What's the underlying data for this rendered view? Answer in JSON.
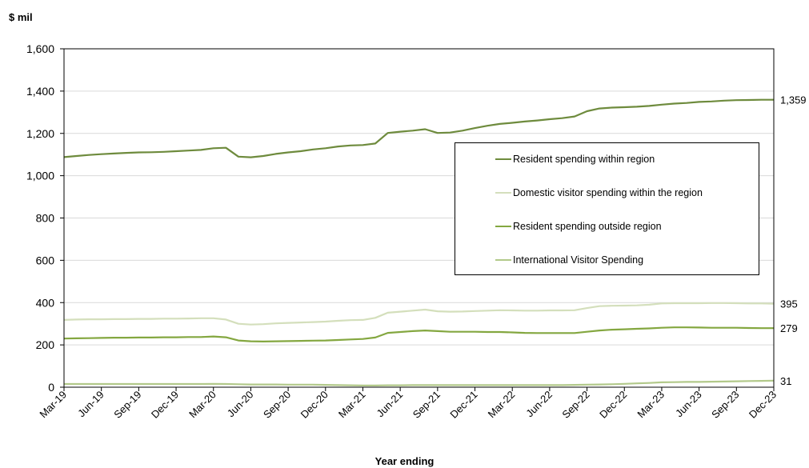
{
  "chart_data": {
    "type": "line",
    "unit_label": "$ mil",
    "xlabel": "Year ending",
    "ylim": [
      0,
      1600
    ],
    "yticks": [
      0,
      200,
      400,
      600,
      800,
      1000,
      1200,
      1400,
      1600
    ],
    "ytick_labels": [
      "0",
      "200",
      "400",
      "600",
      "800",
      "1,000",
      "1,200",
      "1,400",
      "1,600"
    ],
    "grid": "horizontal",
    "legend_position": "right",
    "x": [
      "Mar-19",
      "Apr-19",
      "May-19",
      "Jun-19",
      "Jul-19",
      "Aug-19",
      "Sep-19",
      "Oct-19",
      "Nov-19",
      "Dec-19",
      "Jan-20",
      "Feb-20",
      "Mar-20",
      "Apr-20",
      "May-20",
      "Jun-20",
      "Jul-20",
      "Aug-20",
      "Sep-20",
      "Oct-20",
      "Nov-20",
      "Dec-20",
      "Jan-21",
      "Feb-21",
      "Mar-21",
      "Apr-21",
      "May-21",
      "Jun-21",
      "Jul-21",
      "Aug-21",
      "Sep-21",
      "Oct-21",
      "Nov-21",
      "Dec-21",
      "Jan-22",
      "Feb-22",
      "Mar-22",
      "Apr-22",
      "May-22",
      "Jun-22",
      "Jul-22",
      "Aug-22",
      "Sep-22",
      "Oct-22",
      "Nov-22",
      "Dec-22",
      "Jan-23",
      "Feb-23",
      "Mar-23",
      "Apr-23",
      "May-23",
      "Jun-23",
      "Jul-23",
      "Aug-23",
      "Sep-23",
      "Oct-23",
      "Nov-23",
      "Dec-23"
    ],
    "x_tick_labels": [
      "Mar-19",
      "Jun-19",
      "Sep-19",
      "Dec-19",
      "Mar-20",
      "Jun-20",
      "Sep-20",
      "Dec-20",
      "Mar-21",
      "Jun-21",
      "Sep-21",
      "Dec-21",
      "Mar-22",
      "Jun-22",
      "Sep-22",
      "Dec-22",
      "Mar-23",
      "Jun-23",
      "Sep-23",
      "Dec-23"
    ],
    "series": [
      {
        "name": "Resident spending within region",
        "color": "#6e8b3d",
        "end_label": "1,359",
        "values": [
          1088,
          1093,
          1098,
          1102,
          1105,
          1108,
          1110,
          1111,
          1113,
          1116,
          1119,
          1122,
          1130,
          1132,
          1090,
          1087,
          1093,
          1103,
          1110,
          1116,
          1124,
          1130,
          1138,
          1143,
          1145,
          1152,
          1202,
          1208,
          1213,
          1220,
          1202,
          1204,
          1213,
          1225,
          1236,
          1245,
          1250,
          1256,
          1261,
          1267,
          1272,
          1280,
          1305,
          1318,
          1322,
          1324,
          1326,
          1330,
          1336,
          1341,
          1344,
          1349,
          1351,
          1355,
          1357,
          1358,
          1359,
          1359
        ]
      },
      {
        "name": "Domestic visitor spending within the region",
        "color": "#d4dfbc",
        "end_label": "395",
        "values": [
          318,
          320,
          321,
          321,
          322,
          322,
          323,
          323,
          324,
          324,
          325,
          326,
          326,
          320,
          300,
          296,
          298,
          302,
          304,
          306,
          308,
          310,
          314,
          317,
          318,
          328,
          352,
          357,
          362,
          367,
          359,
          357,
          358,
          360,
          362,
          364,
          363,
          362,
          362,
          363,
          363,
          364,
          374,
          383,
          385,
          386,
          387,
          390,
          396,
          397,
          397,
          397,
          398,
          398,
          397,
          396,
          396,
          395
        ]
      },
      {
        "name": "Resident spending outside region",
        "color": "#84a740",
        "end_label": "279",
        "values": [
          230,
          231,
          232,
          233,
          234,
          234,
          235,
          235,
          236,
          236,
          237,
          237,
          240,
          236,
          221,
          217,
          216,
          217,
          218,
          219,
          220,
          221,
          223,
          226,
          228,
          235,
          257,
          261,
          265,
          268,
          265,
          262,
          262,
          262,
          261,
          261,
          259,
          257,
          256,
          256,
          256,
          256,
          262,
          268,
          272,
          274,
          276,
          278,
          281,
          283,
          283,
          282,
          281,
          281,
          281,
          280,
          279,
          279
        ]
      },
      {
        "name": "International Visitor Spending",
        "color": "#b2c98a",
        "end_label": "31",
        "values": [
          15,
          15,
          15,
          15,
          15,
          15,
          15,
          15,
          15,
          15,
          15,
          15,
          16,
          15,
          14,
          13,
          13,
          13,
          12,
          12,
          12,
          11,
          10,
          9,
          8,
          8,
          9,
          9,
          10,
          10,
          10,
          10,
          10,
          10,
          10,
          10,
          10,
          10,
          10,
          10,
          10,
          11,
          12,
          13,
          14,
          16,
          18,
          20,
          23,
          24,
          25,
          25,
          26,
          27,
          28,
          29,
          30,
          31
        ]
      }
    ]
  }
}
